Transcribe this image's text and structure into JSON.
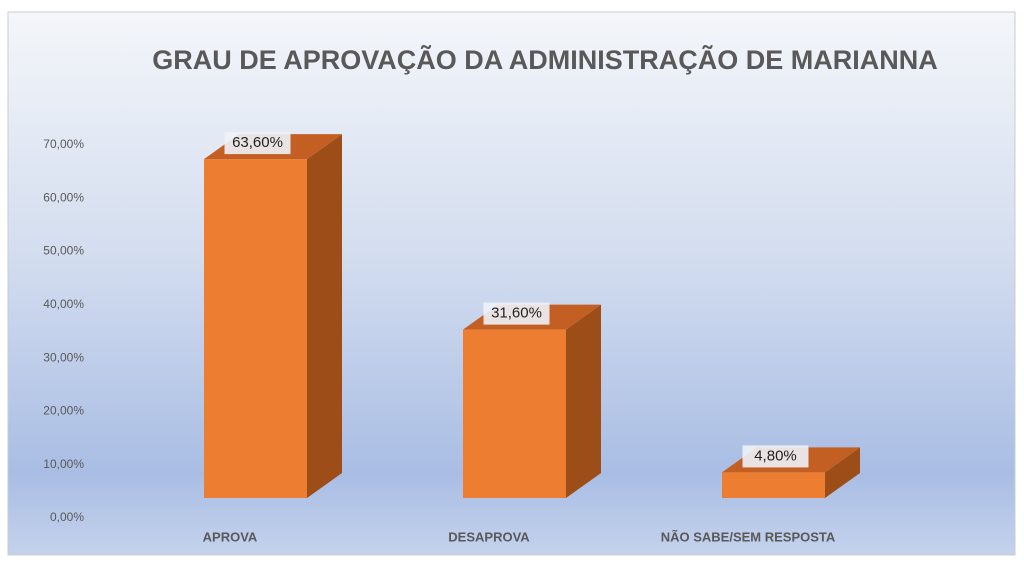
{
  "chart_data": {
    "type": "bar3d",
    "title": "GRAU DE APROVAÇÃO DA ADMINISTRAÇÃO DE MARIANNA",
    "categories": [
      "APROVA",
      "DESAPROVA",
      "NÃO SABE/SEM RESPOSTA"
    ],
    "values": [
      63.6,
      31.6,
      4.8
    ],
    "value_labels": [
      "63,60%",
      "31,60%",
      "4,80%"
    ],
    "color": "#ed7d31",
    "ylim": [
      0,
      70
    ],
    "yticks": [
      {
        "value": 0,
        "label": "0,00%"
      },
      {
        "value": 10,
        "label": "10,00%"
      },
      {
        "value": 20,
        "label": "20,00%"
      },
      {
        "value": 30,
        "label": "30,00%"
      },
      {
        "value": 40,
        "label": "40,00%"
      },
      {
        "value": 50,
        "label": "50,00%"
      },
      {
        "value": 60,
        "label": "60,00%"
      },
      {
        "value": 70,
        "label": "70,00%"
      }
    ],
    "grid": false
  }
}
